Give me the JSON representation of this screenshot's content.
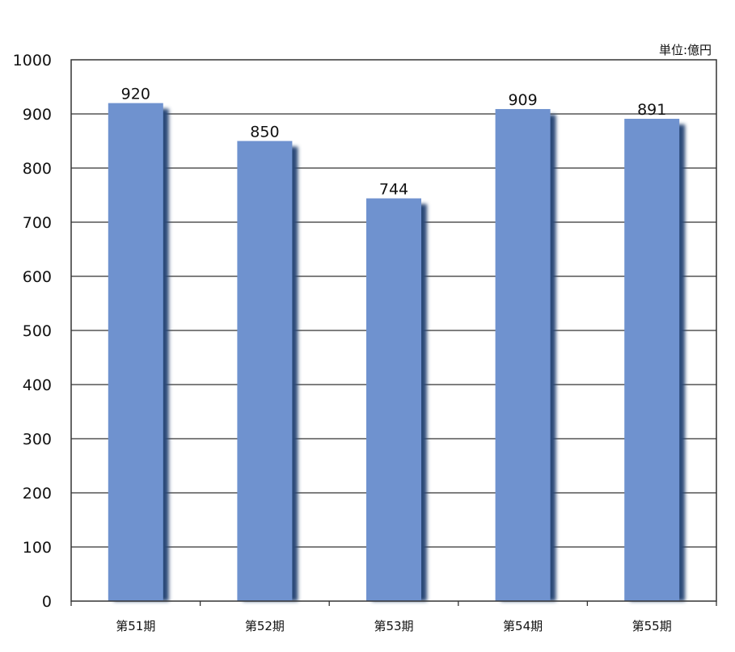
{
  "chart_data": {
    "type": "bar",
    "categories": [
      "第51期",
      "第52期",
      "第53期",
      "第54期",
      "第55期"
    ],
    "values": [
      920,
      850,
      744,
      909,
      891
    ],
    "unit_label": "単位:億円",
    "ylim": [
      0,
      1000
    ],
    "yticks": [
      0,
      100,
      200,
      300,
      400,
      500,
      600,
      700,
      800,
      900,
      1000
    ],
    "grid": true,
    "bar_color": "#6f92cf",
    "shadow_color": "#2b4a78"
  }
}
